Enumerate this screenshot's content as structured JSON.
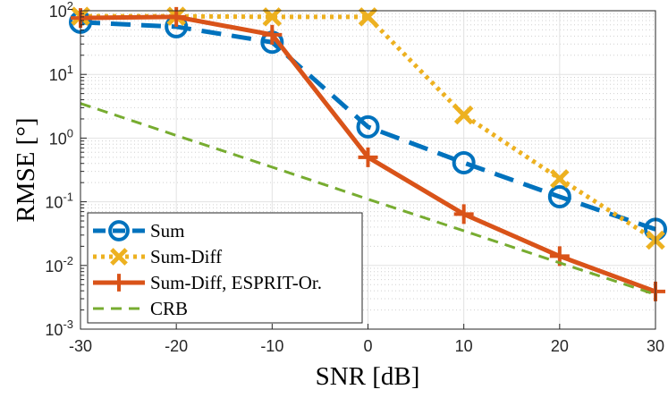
{
  "chart_data": {
    "type": "line",
    "xlabel": "SNR [dB]",
    "ylabel": "RMSE [°]",
    "x": [
      -30,
      -20,
      -10,
      0,
      10,
      20,
      30
    ],
    "xlim": [
      -30,
      30
    ],
    "ylim": [
      0.001,
      100
    ],
    "yscale": "log",
    "grid": true,
    "legend_position": "bottom-left",
    "xticks": [
      "-30",
      "-20",
      "-10",
      "0",
      "10",
      "20",
      "30"
    ],
    "yticks": [
      {
        "base": "10",
        "exp": "2"
      },
      {
        "base": "10",
        "exp": "1"
      },
      {
        "base": "10",
        "exp": "0"
      },
      {
        "base": "10",
        "exp": "-1"
      },
      {
        "base": "10",
        "exp": "-2"
      },
      {
        "base": "10",
        "exp": "-3"
      }
    ],
    "series": [
      {
        "name": "Sum",
        "color": "#0072BD",
        "style": "dash",
        "marker": "circle",
        "values": [
          66,
          56,
          32,
          1.5,
          0.41,
          0.12,
          0.037
        ]
      },
      {
        "name": "Sum-Diff",
        "color": "#EDB120",
        "style": "dot",
        "marker": "x",
        "values": [
          82,
          82,
          80,
          80,
          2.3,
          0.23,
          0.025
        ]
      },
      {
        "name": "Sum-Diff, ESPRIT-Or.",
        "color": "#D95319",
        "style": "solid",
        "marker": "plus",
        "values": [
          77,
          80,
          42,
          0.5,
          0.064,
          0.014,
          0.0039
        ]
      },
      {
        "name": "CRB",
        "color": "#77AC30",
        "style": "dash",
        "marker": "none",
        "values": [
          3.5,
          1.1,
          0.35,
          0.11,
          0.035,
          0.011,
          0.0035
        ]
      }
    ]
  }
}
